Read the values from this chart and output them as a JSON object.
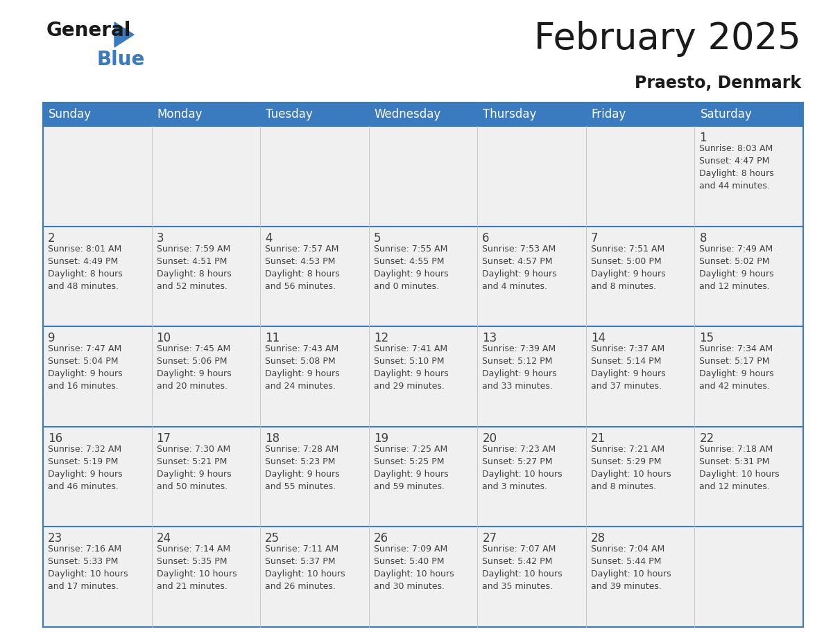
{
  "title": "February 2025",
  "subtitle": "Praesto, Denmark",
  "header_bg": "#3a7abf",
  "header_text": "#ffffff",
  "cell_bg": "#f0f0f0",
  "border_color": "#3a7abf",
  "text_color": "#404040",
  "days_of_week": [
    "Sunday",
    "Monday",
    "Tuesday",
    "Wednesday",
    "Thursday",
    "Friday",
    "Saturday"
  ],
  "weeks": [
    [
      {
        "day": null,
        "info": null
      },
      {
        "day": null,
        "info": null
      },
      {
        "day": null,
        "info": null
      },
      {
        "day": null,
        "info": null
      },
      {
        "day": null,
        "info": null
      },
      {
        "day": null,
        "info": null
      },
      {
        "day": 1,
        "info": "Sunrise: 8:03 AM\nSunset: 4:47 PM\nDaylight: 8 hours\nand 44 minutes."
      }
    ],
    [
      {
        "day": 2,
        "info": "Sunrise: 8:01 AM\nSunset: 4:49 PM\nDaylight: 8 hours\nand 48 minutes."
      },
      {
        "day": 3,
        "info": "Sunrise: 7:59 AM\nSunset: 4:51 PM\nDaylight: 8 hours\nand 52 minutes."
      },
      {
        "day": 4,
        "info": "Sunrise: 7:57 AM\nSunset: 4:53 PM\nDaylight: 8 hours\nand 56 minutes."
      },
      {
        "day": 5,
        "info": "Sunrise: 7:55 AM\nSunset: 4:55 PM\nDaylight: 9 hours\nand 0 minutes."
      },
      {
        "day": 6,
        "info": "Sunrise: 7:53 AM\nSunset: 4:57 PM\nDaylight: 9 hours\nand 4 minutes."
      },
      {
        "day": 7,
        "info": "Sunrise: 7:51 AM\nSunset: 5:00 PM\nDaylight: 9 hours\nand 8 minutes."
      },
      {
        "day": 8,
        "info": "Sunrise: 7:49 AM\nSunset: 5:02 PM\nDaylight: 9 hours\nand 12 minutes."
      }
    ],
    [
      {
        "day": 9,
        "info": "Sunrise: 7:47 AM\nSunset: 5:04 PM\nDaylight: 9 hours\nand 16 minutes."
      },
      {
        "day": 10,
        "info": "Sunrise: 7:45 AM\nSunset: 5:06 PM\nDaylight: 9 hours\nand 20 minutes."
      },
      {
        "day": 11,
        "info": "Sunrise: 7:43 AM\nSunset: 5:08 PM\nDaylight: 9 hours\nand 24 minutes."
      },
      {
        "day": 12,
        "info": "Sunrise: 7:41 AM\nSunset: 5:10 PM\nDaylight: 9 hours\nand 29 minutes."
      },
      {
        "day": 13,
        "info": "Sunrise: 7:39 AM\nSunset: 5:12 PM\nDaylight: 9 hours\nand 33 minutes."
      },
      {
        "day": 14,
        "info": "Sunrise: 7:37 AM\nSunset: 5:14 PM\nDaylight: 9 hours\nand 37 minutes."
      },
      {
        "day": 15,
        "info": "Sunrise: 7:34 AM\nSunset: 5:17 PM\nDaylight: 9 hours\nand 42 minutes."
      }
    ],
    [
      {
        "day": 16,
        "info": "Sunrise: 7:32 AM\nSunset: 5:19 PM\nDaylight: 9 hours\nand 46 minutes."
      },
      {
        "day": 17,
        "info": "Sunrise: 7:30 AM\nSunset: 5:21 PM\nDaylight: 9 hours\nand 50 minutes."
      },
      {
        "day": 18,
        "info": "Sunrise: 7:28 AM\nSunset: 5:23 PM\nDaylight: 9 hours\nand 55 minutes."
      },
      {
        "day": 19,
        "info": "Sunrise: 7:25 AM\nSunset: 5:25 PM\nDaylight: 9 hours\nand 59 minutes."
      },
      {
        "day": 20,
        "info": "Sunrise: 7:23 AM\nSunset: 5:27 PM\nDaylight: 10 hours\nand 3 minutes."
      },
      {
        "day": 21,
        "info": "Sunrise: 7:21 AM\nSunset: 5:29 PM\nDaylight: 10 hours\nand 8 minutes."
      },
      {
        "day": 22,
        "info": "Sunrise: 7:18 AM\nSunset: 5:31 PM\nDaylight: 10 hours\nand 12 minutes."
      }
    ],
    [
      {
        "day": 23,
        "info": "Sunrise: 7:16 AM\nSunset: 5:33 PM\nDaylight: 10 hours\nand 17 minutes."
      },
      {
        "day": 24,
        "info": "Sunrise: 7:14 AM\nSunset: 5:35 PM\nDaylight: 10 hours\nand 21 minutes."
      },
      {
        "day": 25,
        "info": "Sunrise: 7:11 AM\nSunset: 5:37 PM\nDaylight: 10 hours\nand 26 minutes."
      },
      {
        "day": 26,
        "info": "Sunrise: 7:09 AM\nSunset: 5:40 PM\nDaylight: 10 hours\nand 30 minutes."
      },
      {
        "day": 27,
        "info": "Sunrise: 7:07 AM\nSunset: 5:42 PM\nDaylight: 10 hours\nand 35 minutes."
      },
      {
        "day": 28,
        "info": "Sunrise: 7:04 AM\nSunset: 5:44 PM\nDaylight: 10 hours\nand 39 minutes."
      },
      {
        "day": null,
        "info": null
      }
    ]
  ],
  "logo_general_color": "#1a1a1a",
  "logo_blue_color": "#3a7abf",
  "logo_triangle_color": "#3a7abf"
}
